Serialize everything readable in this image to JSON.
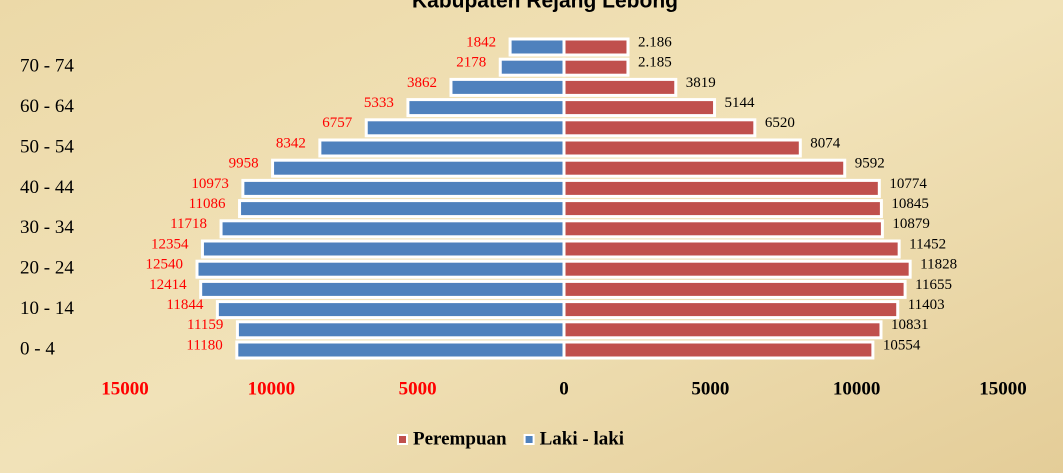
{
  "chart_data": {
    "type": "pyramid",
    "title": "Kabupaten Rejang Lebong",
    "categories": [
      "0 - 4",
      null,
      "10 - 14",
      null,
      "20 - 24",
      null,
      "30 - 34",
      null,
      "40 - 44",
      null,
      "50 - 54",
      null,
      "60 - 64",
      null,
      "70 - 74",
      null
    ],
    "series": [
      {
        "name": "Perempuan",
        "color": "#c0504d",
        "side": "right",
        "values": [
          10554,
          10831,
          11403,
          11655,
          11828,
          11452,
          10879,
          10845,
          10774,
          9592,
          8074,
          6520,
          5144,
          3819,
          2185,
          2186
        ],
        "value_labels": [
          "10554",
          "10831",
          "11403",
          "11655",
          "11828",
          "11452",
          "10879",
          "10845",
          "10774",
          "9592",
          "8074",
          "6520",
          "5144",
          "3819",
          "2.185",
          "2.186"
        ]
      },
      {
        "name": "Laki - laki",
        "color": "#4f81bd",
        "side": "left",
        "values": [
          11180,
          11159,
          11844,
          12414,
          12540,
          12354,
          11718,
          11086,
          10973,
          9958,
          8342,
          6757,
          5333,
          3862,
          2178,
          1842
        ]
      }
    ],
    "xlim": [
      -15000,
      15000
    ],
    "xticks": [
      {
        "value": -15000,
        "label": "15000"
      },
      {
        "value": -10000,
        "label": "10000"
      },
      {
        "value": -5000,
        "label": "5000"
      },
      0,
      5000,
      10000,
      15000
    ],
    "legend": "bottom"
  }
}
